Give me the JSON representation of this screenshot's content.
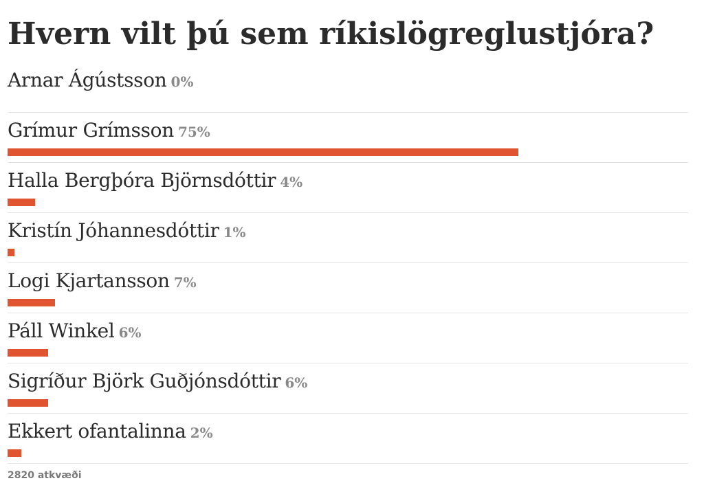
{
  "poll": {
    "title": "Hvern vilt þú sem ríkislögreglustjóra?",
    "bar_color": "#e0552f",
    "options": [
      {
        "label": "Arnar Ágústsson",
        "percent_label": "0%",
        "percent": 0
      },
      {
        "label": "Grímur Grímsson",
        "percent_label": "75%",
        "percent": 75
      },
      {
        "label": "Halla Bergþóra Björnsdóttir",
        "percent_label": "4%",
        "percent": 4
      },
      {
        "label": "Kristín Jóhannesdóttir",
        "percent_label": "1%",
        "percent": 1
      },
      {
        "label": "Logi Kjartansson",
        "percent_label": "7%",
        "percent": 7
      },
      {
        "label": "Páll Winkel",
        "percent_label": "6%",
        "percent": 6
      },
      {
        "label": "Sigríður Björk Guðjónsdóttir",
        "percent_label": "6%",
        "percent": 6
      },
      {
        "label": "Ekkert ofantalinna",
        "percent_label": "2%",
        "percent": 2
      }
    ],
    "vote_count": "2820 atkvæði"
  }
}
